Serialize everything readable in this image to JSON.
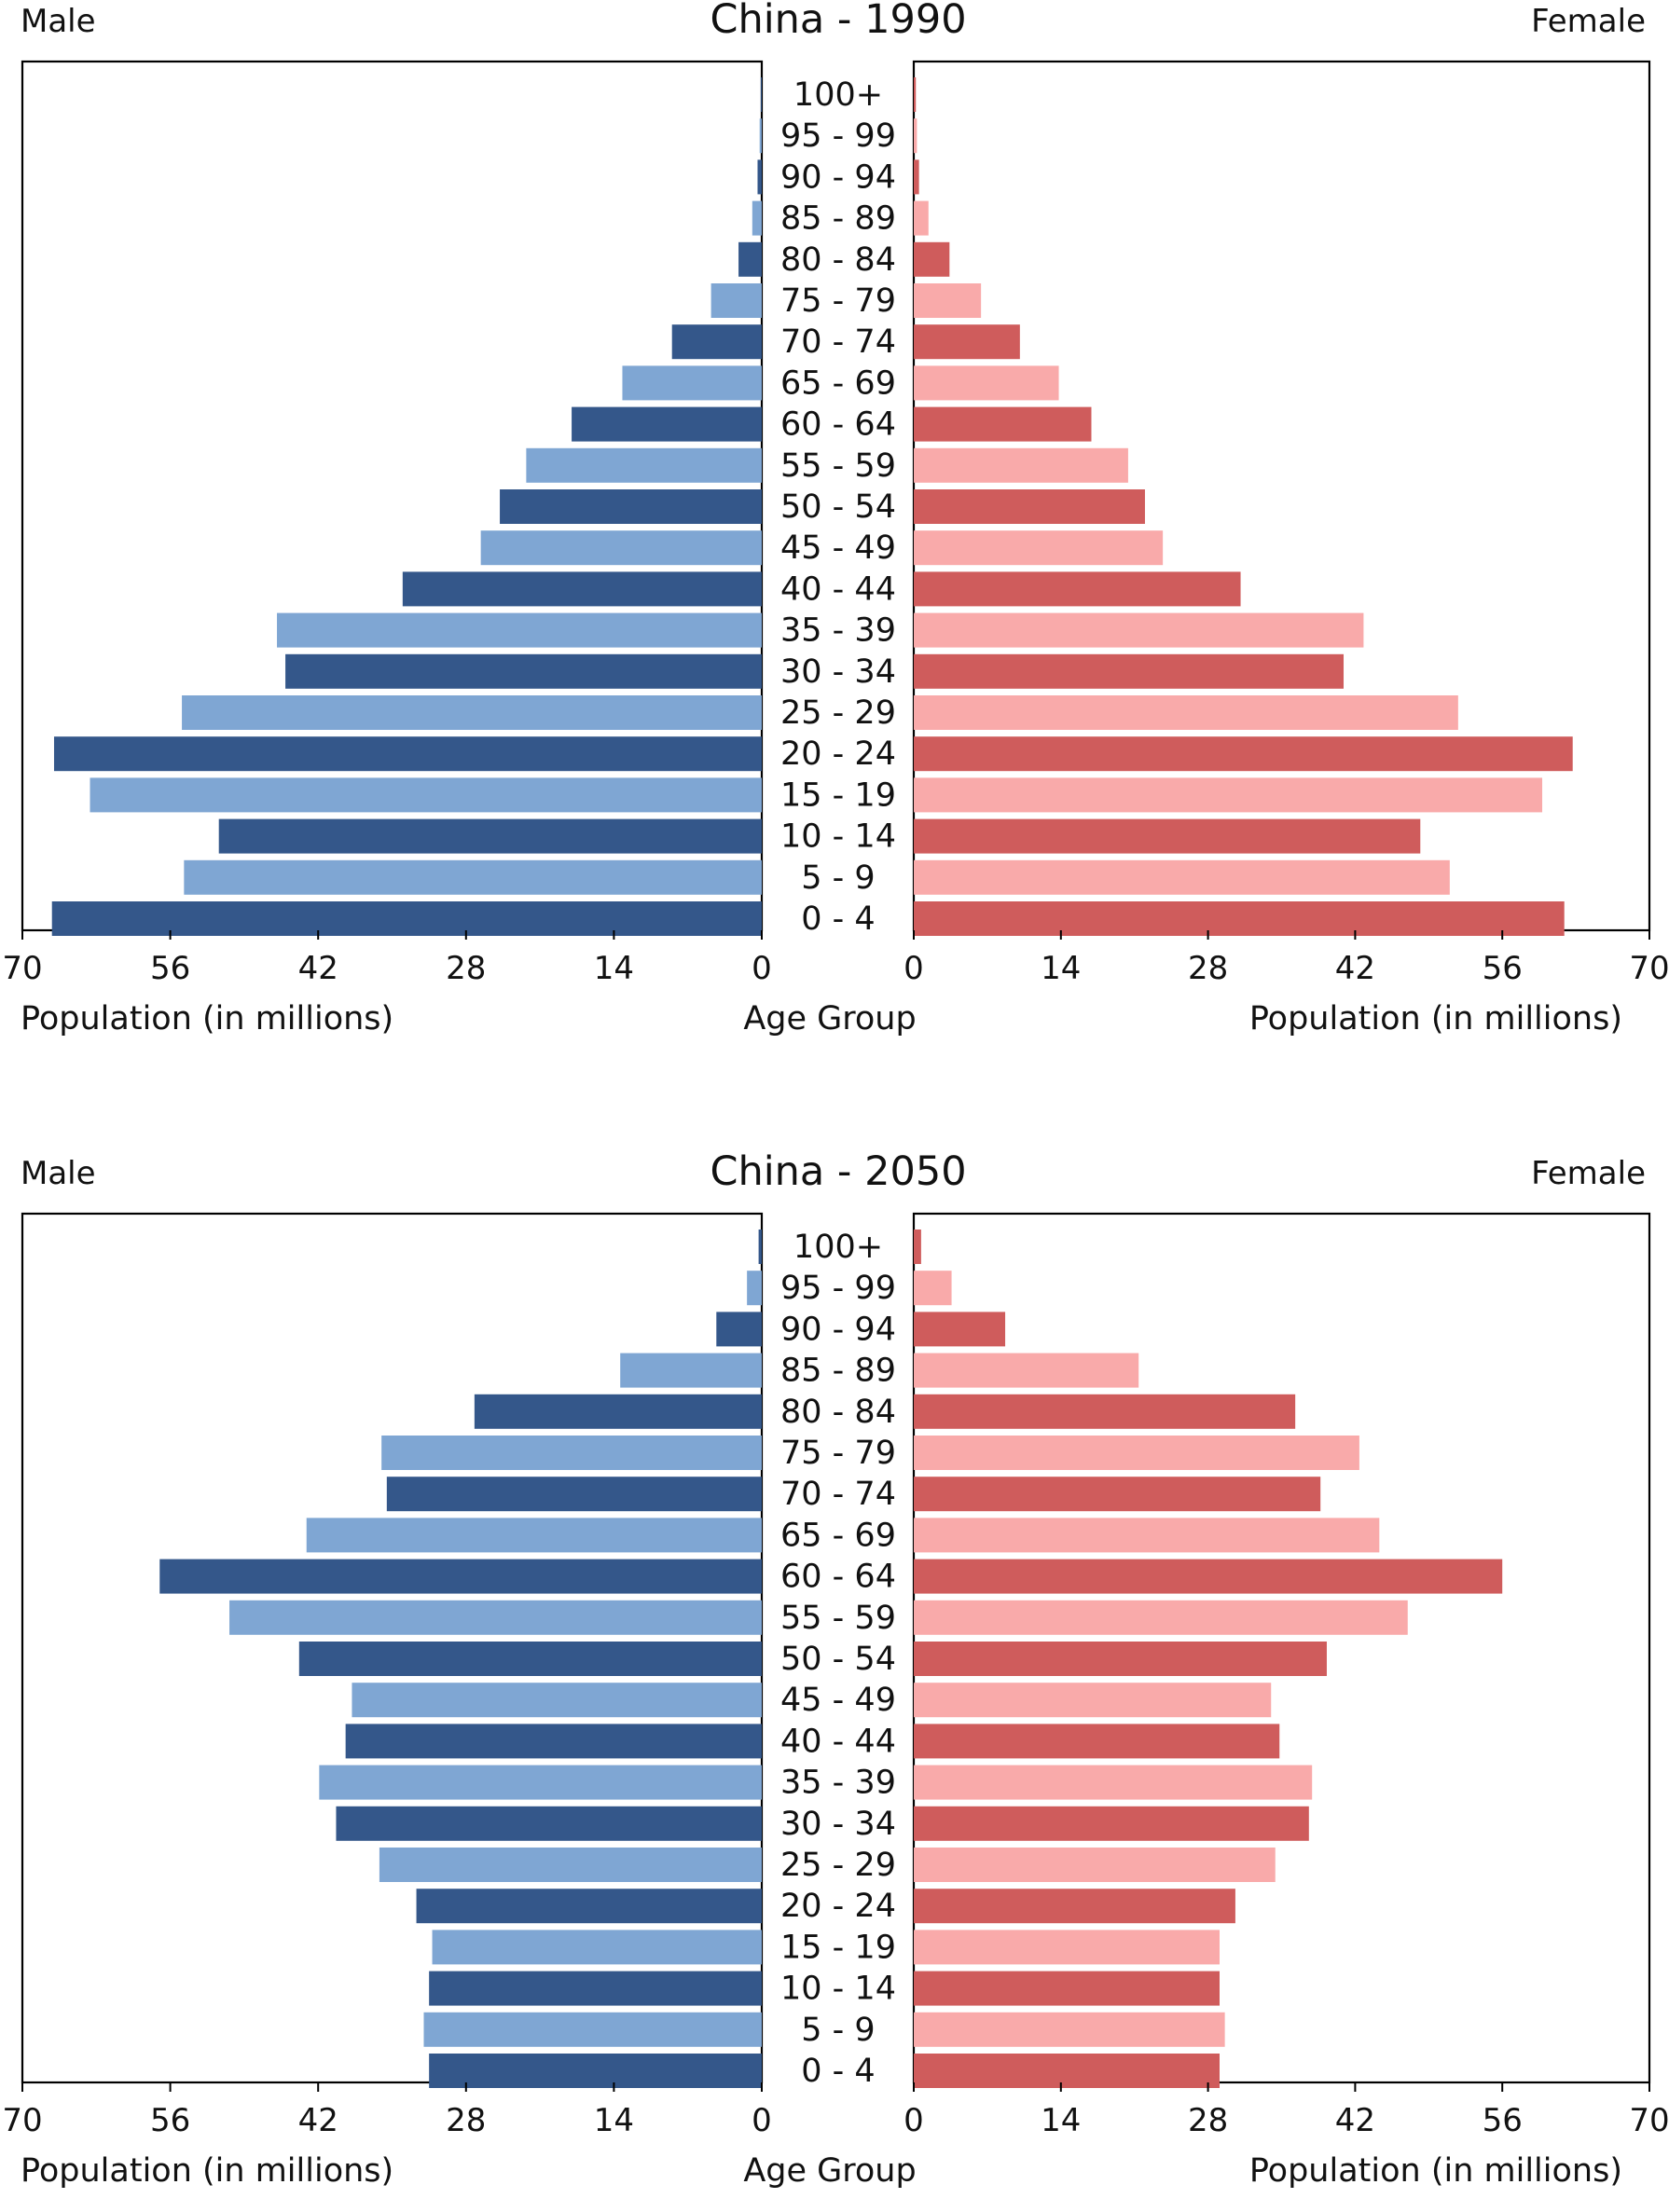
{
  "chart_data": [
    {
      "type": "bar",
      "orientation": "horizontal",
      "layout": "population-pyramid",
      "title": "China - 1990",
      "left_label": "Male",
      "right_label": "Female",
      "xlabel_left": "Population (in millions)",
      "xlabel_center": "Age Group",
      "xlabel_right": "Population (in millions)",
      "xlim": [
        0,
        70
      ],
      "xticks": [
        "70",
        "56",
        "42",
        "28",
        "14",
        "0"
      ],
      "xticks_right": [
        "0",
        "14",
        "28",
        "42",
        "56",
        "70"
      ],
      "categories": [
        "100+",
        "95 - 99",
        "90 - 94",
        "85 - 89",
        "80 - 84",
        "75 - 79",
        "70 - 74",
        "65 - 69",
        "60 - 64",
        "55 - 59",
        "50 - 54",
        "45 - 49",
        "40 - 44",
        "35 - 39",
        "30 - 34",
        "25 - 29",
        "20 - 24",
        "15 - 19",
        "10 - 14",
        "5 - 9",
        "0 - 4"
      ],
      "series": [
        {
          "name": "Male",
          "side": "left",
          "colors": [
            "#34578a",
            "#7fa6d3"
          ],
          "values": [
            0.1,
            0.2,
            0.4,
            0.9,
            2.2,
            4.8,
            8.5,
            13.2,
            18.0,
            22.3,
            24.8,
            26.6,
            34.0,
            45.9,
            45.1,
            54.9,
            67.0,
            63.6,
            51.4,
            54.7,
            67.2
          ]
        },
        {
          "name": "Female",
          "side": "right",
          "colors": [
            "#cf5c5c",
            "#f9aaaa"
          ],
          "values": [
            0.2,
            0.3,
            0.5,
            1.4,
            3.4,
            6.4,
            10.1,
            13.8,
            16.9,
            20.4,
            22.0,
            23.7,
            31.1,
            42.8,
            40.9,
            51.8,
            62.7,
            59.8,
            48.2,
            51.0,
            61.9
          ]
        }
      ]
    },
    {
      "type": "bar",
      "orientation": "horizontal",
      "layout": "population-pyramid",
      "title": "China - 2050",
      "left_label": "Male",
      "right_label": "Female",
      "xlabel_left": "Population (in millions)",
      "xlabel_center": "Age Group",
      "xlabel_right": "Population (in millions)",
      "xlim": [
        0,
        70
      ],
      "xticks": [
        "70",
        "56",
        "42",
        "28",
        "14",
        "0"
      ],
      "xticks_right": [
        "0",
        "14",
        "28",
        "42",
        "56",
        "70"
      ],
      "categories": [
        "100+",
        "95 - 99",
        "90 - 94",
        "85 - 89",
        "80 - 84",
        "75 - 79",
        "70 - 74",
        "65 - 69",
        "60 - 64",
        "55 - 59",
        "50 - 54",
        "45 - 49",
        "40 - 44",
        "35 - 39",
        "30 - 34",
        "25 - 29",
        "20 - 24",
        "15 - 19",
        "10 - 14",
        "5 - 9",
        "0 - 4"
      ],
      "series": [
        {
          "name": "Male",
          "side": "left",
          "colors": [
            "#34578a",
            "#7fa6d3"
          ],
          "values": [
            0.3,
            1.4,
            4.3,
            13.4,
            27.2,
            36.0,
            35.5,
            43.1,
            57.0,
            50.4,
            43.8,
            38.8,
            39.4,
            41.9,
            40.3,
            36.2,
            32.7,
            31.2,
            31.5,
            32.0,
            31.5
          ]
        },
        {
          "name": "Female",
          "side": "right",
          "colors": [
            "#cf5c5c",
            "#f9aaaa"
          ],
          "values": [
            0.7,
            3.6,
            8.7,
            21.4,
            36.3,
            42.4,
            38.7,
            44.3,
            56.0,
            47.0,
            39.3,
            34.0,
            34.8,
            37.9,
            37.6,
            34.4,
            30.6,
            29.1,
            29.1,
            29.6,
            29.1
          ]
        }
      ]
    }
  ]
}
